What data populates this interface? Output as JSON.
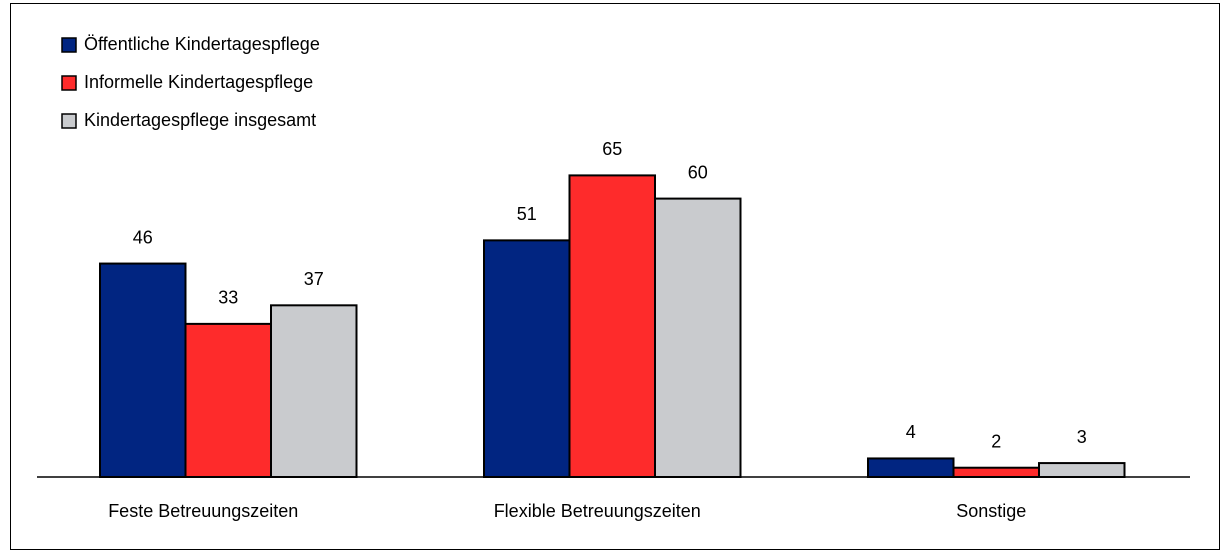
{
  "chart_data": {
    "type": "bar",
    "categories": [
      "Feste Betreuungszeiten",
      "Flexible Betreuungszeiten",
      "Sonstige"
    ],
    "series": [
      {
        "name": "Öffentliche Kindertagespflege",
        "color": "#012581",
        "values": [
          46,
          51,
          4
        ]
      },
      {
        "name": "Informelle Kindertagespflege",
        "color": "#fe2b2b",
        "values": [
          33,
          65,
          2
        ]
      },
      {
        "name": "Kindertagespflege insgesamt",
        "color": "#c9cbce",
        "values": [
          37,
          60,
          3
        ]
      }
    ],
    "legend": "top-left"
  }
}
